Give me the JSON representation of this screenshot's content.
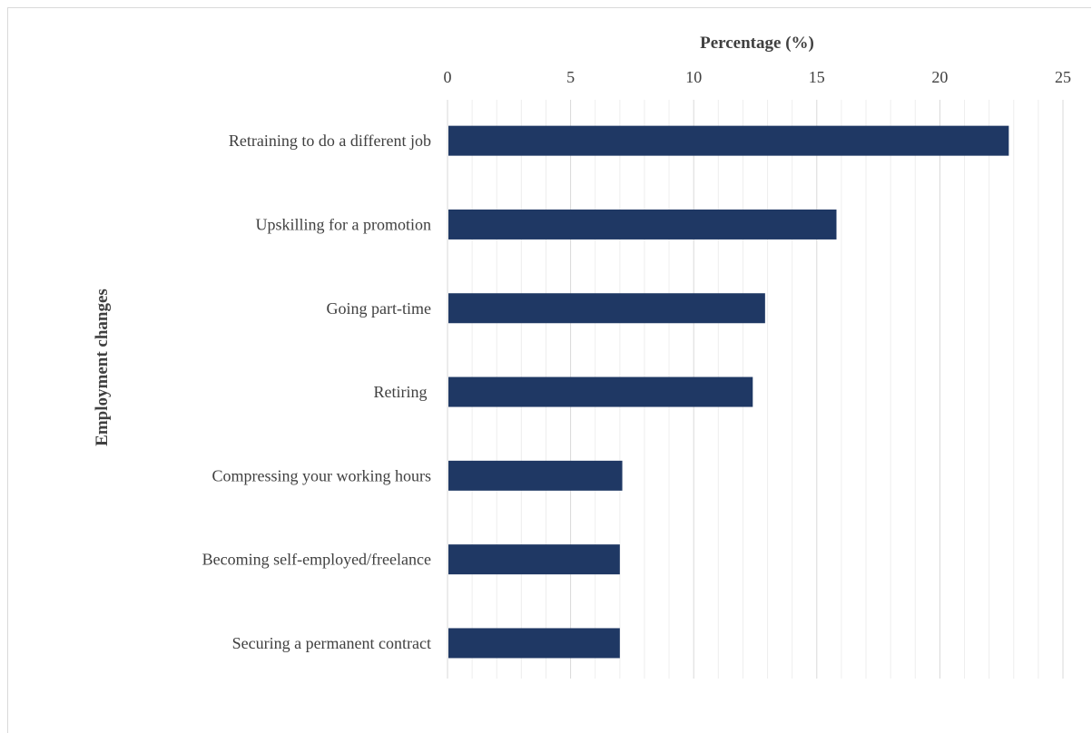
{
  "chart_data": {
    "type": "bar",
    "orientation": "horizontal",
    "title": "",
    "xlabel": "Percentage (%)",
    "ylabel": "Employment changes",
    "xlim": [
      0,
      25
    ],
    "x_ticks": [
      0,
      5,
      10,
      15,
      20,
      25
    ],
    "x_axis_position": "top",
    "grid": true,
    "legend": "none",
    "bar_color": "#1f3864",
    "categories": [
      "Retraining to do a different job",
      "Upskilling for a promotion",
      "Going part-time",
      "Retiring ",
      "Compressing your working hours",
      "Becoming self-employed/freelance",
      "Securing a permanent contract"
    ],
    "values": [
      22.8,
      15.8,
      12.9,
      12.4,
      7.1,
      7.0,
      7.0
    ]
  }
}
